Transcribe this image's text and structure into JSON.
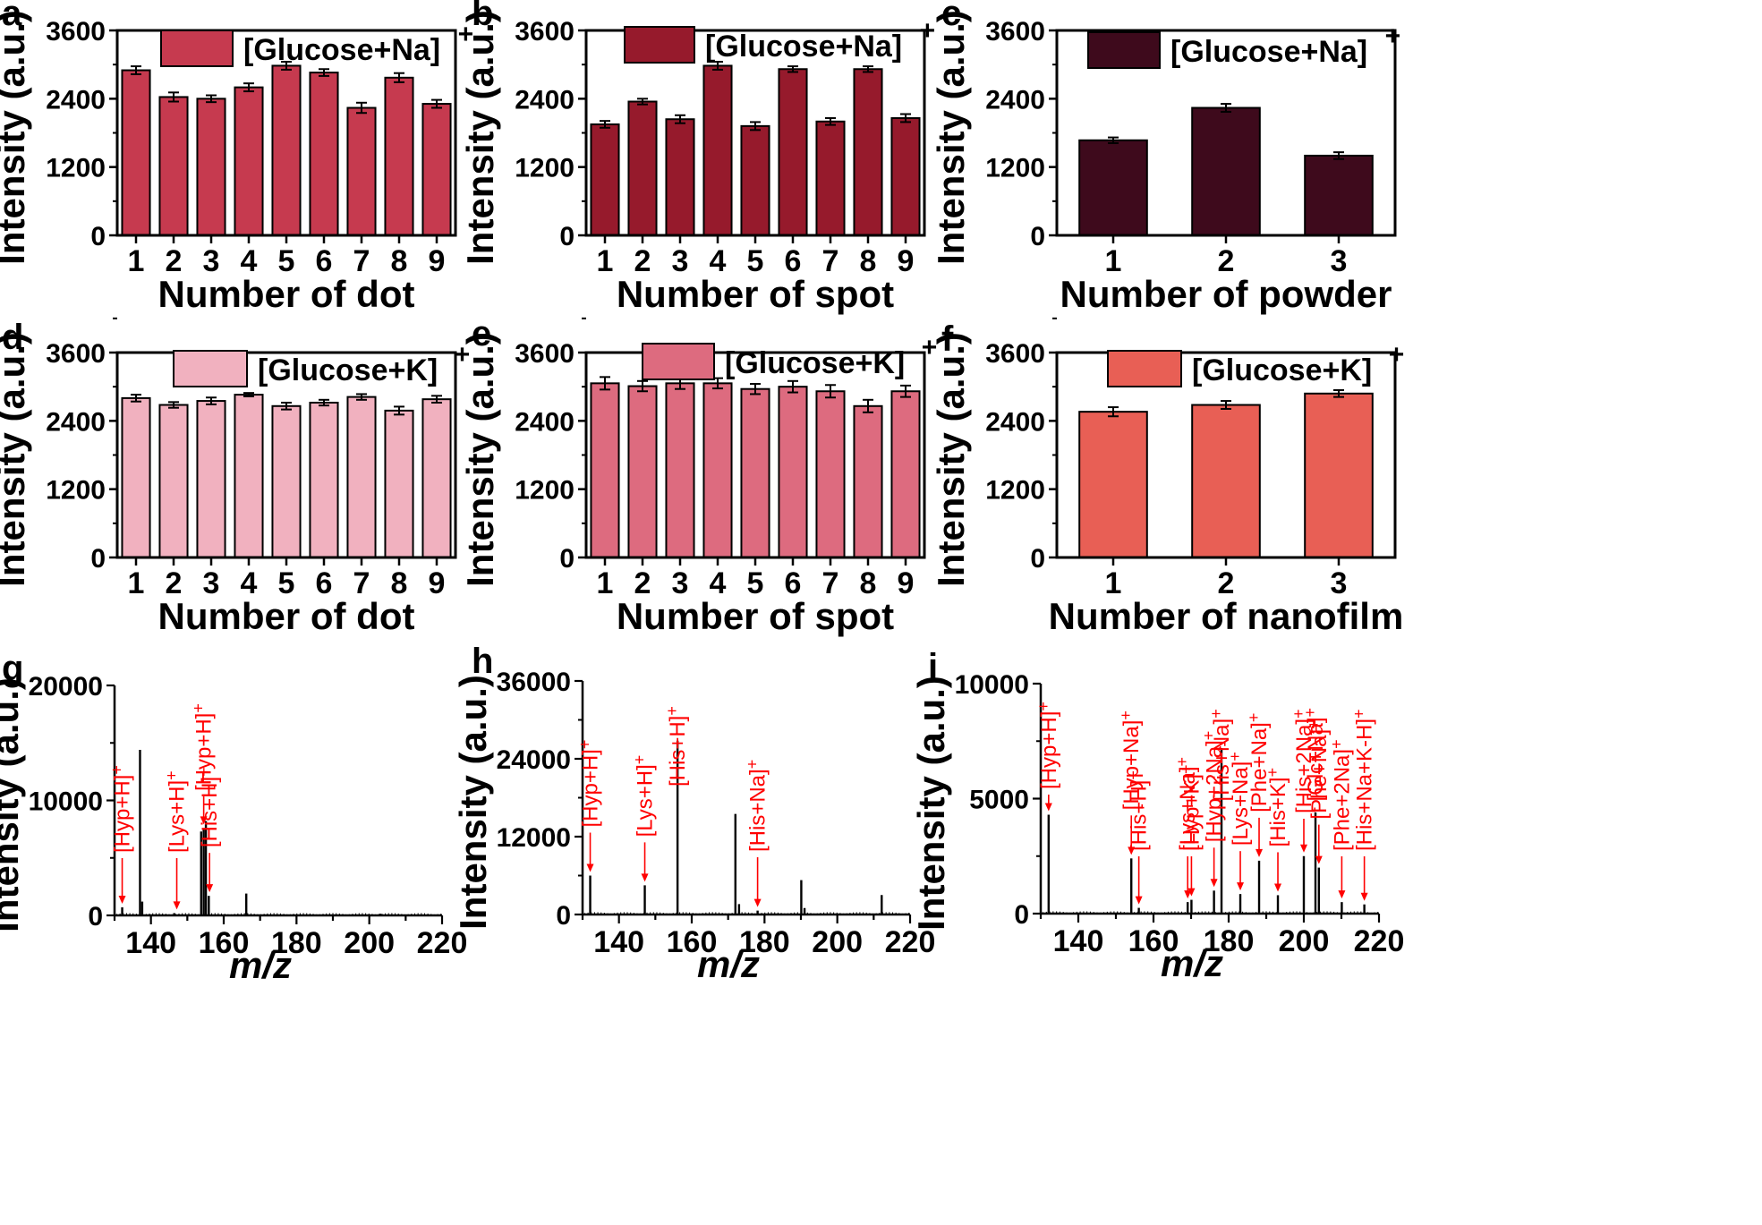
{
  "chart_data": [
    {
      "panel": "a",
      "type": "bar",
      "legend": "[Glucose+Na]",
      "legend_sup": "+",
      "xlabel": "Number of dot",
      "ylabel": "Intensity (a.u.)",
      "ylim": [
        0,
        3600
      ],
      "yticks": [
        "0",
        "1200",
        "2400",
        "3600"
      ],
      "categories": [
        "1",
        "2",
        "3",
        "4",
        "5",
        "6",
        "7",
        "8",
        "9"
      ],
      "values": [
        2900,
        2430,
        2400,
        2600,
        2980,
        2860,
        2240,
        2770,
        2310
      ],
      "errors": [
        70,
        80,
        60,
        70,
        70,
        60,
        90,
        80,
        70
      ],
      "color": "#c63a4f"
    },
    {
      "panel": "b",
      "type": "bar",
      "legend": "[Glucose+Na]",
      "legend_sup": "+",
      "xlabel": "Number of spot",
      "ylabel": "Intensity (a.u.)",
      "ylim": [
        0,
        3600
      ],
      "yticks": [
        "0",
        "1200",
        "2400",
        "3600"
      ],
      "categories": [
        "1",
        "2",
        "3",
        "4",
        "5",
        "6",
        "7",
        "8",
        "9"
      ],
      "values": [
        1950,
        2350,
        2040,
        2980,
        1920,
        2920,
        2000,
        2920,
        2060
      ],
      "errors": [
        60,
        50,
        70,
        70,
        70,
        50,
        60,
        50,
        70
      ],
      "color": "#961a2c"
    },
    {
      "panel": "c",
      "type": "bar",
      "legend": "[Glucose+Na]",
      "legend_sup": "+",
      "xlabel": "Number of powder",
      "ylabel": "Intensity (a.u.)",
      "ylim": [
        0,
        3600
      ],
      "yticks": [
        "0",
        "1200",
        "2400",
        "3600"
      ],
      "categories": [
        "1",
        "2",
        "3"
      ],
      "values": [
        1670,
        2240,
        1400
      ],
      "errors": [
        50,
        70,
        60
      ],
      "color": "#3e0a1c"
    },
    {
      "panel": "d",
      "type": "bar",
      "legend": "[Glucose+K]",
      "legend_sup": "+",
      "xlabel": "Number of dot",
      "ylabel": "Intensity (a.u.)",
      "ylim": [
        0,
        3600
      ],
      "yticks": [
        "0",
        "1200",
        "2400",
        "3600"
      ],
      "categories": [
        "1",
        "2",
        "3",
        "4",
        "5",
        "6",
        "7",
        "8",
        "9"
      ],
      "values": [
        2800,
        2680,
        2750,
        2860,
        2660,
        2720,
        2820,
        2580,
        2780
      ],
      "errors": [
        60,
        50,
        60,
        30,
        60,
        50,
        50,
        70,
        60
      ],
      "color": "#f1b1bf"
    },
    {
      "panel": "e",
      "type": "bar",
      "legend": "[Glucose+K]",
      "legend_sup": "+",
      "xlabel": "Number of spot",
      "ylabel": "Intensity (a.u.)",
      "ylim": [
        0,
        3600
      ],
      "yticks": [
        "0",
        "1200",
        "2400",
        "3600"
      ],
      "categories": [
        "1",
        "2",
        "3",
        "4",
        "5",
        "6",
        "7",
        "8",
        "9"
      ],
      "values": [
        3060,
        3010,
        3060,
        3060,
        2960,
        3000,
        2920,
        2660,
        2920
      ],
      "errors": [
        110,
        90,
        100,
        90,
        90,
        100,
        110,
        110,
        100
      ],
      "color": "#dd6b7f"
    },
    {
      "panel": "f",
      "type": "bar",
      "legend": "[Glucose+K]",
      "legend_sup": "+",
      "xlabel": "Number of nanofilm",
      "ylabel": "Intensity (a.u.)",
      "ylim": [
        0,
        3600
      ],
      "yticks": [
        "0",
        "1200",
        "2400",
        "3600"
      ],
      "categories": [
        "1",
        "2",
        "3"
      ],
      "values": [
        2560,
        2680,
        2880
      ],
      "errors": [
        80,
        70,
        60
      ],
      "color": "#e85f55"
    },
    {
      "panel": "g",
      "type": "spectrum",
      "xlabel": "m/z",
      "ylabel": "Intensity (a.u.)",
      "xlim": [
        130,
        220
      ],
      "ylim": [
        0,
        20000
      ],
      "xticks": [
        "140",
        "160",
        "180",
        "200",
        "220"
      ],
      "yticks": [
        "0",
        "10000",
        "20000"
      ],
      "peaks": [
        [
          132.1,
          700
        ],
        [
          137.0,
          14400
        ],
        [
          137.6,
          1200
        ],
        [
          146.4,
          200
        ],
        [
          153.8,
          7300
        ],
        [
          154.5,
          7600
        ],
        [
          155.1,
          8200
        ],
        [
          155.9,
          1700
        ],
        [
          166.2,
          1900
        ],
        [
          203,
          150
        ]
      ],
      "annotations": [
        {
          "text": "[Hyp+H]",
          "sup": "+",
          "x": 132.1
        },
        {
          "text": "[Lys+H]",
          "sup": "+",
          "x": 147.1
        },
        {
          "text": "[Hyp+H]",
          "sup": "+",
          "x": 154.5
        },
        {
          "text": "[His+H]",
          "sup": "+",
          "x": 156.1
        }
      ]
    },
    {
      "panel": "h",
      "type": "spectrum",
      "xlabel": "m/z",
      "ylabel": "Intensity (a.u.)",
      "xlim": [
        130,
        220
      ],
      "ylim": [
        0,
        36000
      ],
      "xticks": [
        "140",
        "160",
        "180",
        "200",
        "220"
      ],
      "yticks": [
        "0",
        "12000",
        "24000",
        "36000"
      ],
      "peaks": [
        [
          132.1,
          6000
        ],
        [
          147.1,
          4500
        ],
        [
          156.1,
          26800
        ],
        [
          172.0,
          15500
        ],
        [
          173.0,
          1600
        ],
        [
          178.1,
          600
        ],
        [
          190.1,
          5300
        ],
        [
          191.0,
          1000
        ],
        [
          212.2,
          3000
        ]
      ],
      "annotations": [
        {
          "text": "[Hyp+H]",
          "sup": "+",
          "x": 132.1
        },
        {
          "text": "[Lys+H]",
          "sup": "+",
          "x": 147.1
        },
        {
          "text": "[His+H]",
          "sup": "+",
          "x": 156.1
        },
        {
          "text": "[His+Na]",
          "sup": "+",
          "x": 178.1
        }
      ]
    },
    {
      "panel": "i",
      "type": "spectrum",
      "xlabel": "m/z",
      "ylabel": "Intensity (a.u.)",
      "xlim": [
        130,
        220
      ],
      "ylim": [
        0,
        10000
      ],
      "xticks": [
        "140",
        "160",
        "180",
        "200",
        "220"
      ],
      "yticks": [
        "0",
        "5000",
        "10000"
      ],
      "peaks": [
        [
          132.1,
          4300
        ],
        [
          154.1,
          2400
        ],
        [
          156.1,
          250
        ],
        [
          169.1,
          500
        ],
        [
          170.1,
          600
        ],
        [
          176.1,
          1000
        ],
        [
          178.1,
          7200
        ],
        [
          183.1,
          850
        ],
        [
          188.1,
          2300
        ],
        [
          193.1,
          800
        ],
        [
          200.0,
          2500
        ],
        [
          203.1,
          4400
        ],
        [
          204.0,
          2000
        ],
        [
          210.1,
          500
        ],
        [
          216.1,
          400
        ]
      ],
      "annotations": [
        {
          "text": "[Hyp+H]",
          "sup": "+",
          "x": 132.1
        },
        {
          "text": "[Hyp+Na]",
          "sup": "+",
          "x": 154.1
        },
        {
          "text": "[His+H]",
          "sup": "+",
          "x": 156.1
        },
        {
          "text": "[Lys+Na]",
          "sup": "+",
          "x": 169.1
        },
        {
          "text": "[Hyp+K]",
          "sup": "+",
          "x": 170.1
        },
        {
          "text": "[Hyp+2Na]",
          "sup": "+",
          "x": 176.1
        },
        {
          "text": "[His+Na]",
          "sup": "+",
          "x": 178.1
        },
        {
          "text": "[Lys+Na]",
          "sup": "+",
          "x": 183.1
        },
        {
          "text": "[Phe+Na]",
          "sup": "+",
          "x": 188.1
        },
        {
          "text": "[His+K]",
          "sup": "+",
          "x": 193.1
        },
        {
          "text": "[His+2Na]",
          "sup": "+",
          "x": 200.0
        },
        {
          "text": "[Glc+Na]",
          "sup": "+",
          "x": 203.1
        },
        {
          "text": "[Phe+Na]",
          "sup": "+",
          "x": 204.0
        },
        {
          "text": "[Phe+2Na]",
          "sup": "+",
          "x": 210.1
        },
        {
          "text": "[His+Na+K-H]",
          "sup": "+",
          "x": 216.1
        }
      ]
    }
  ]
}
